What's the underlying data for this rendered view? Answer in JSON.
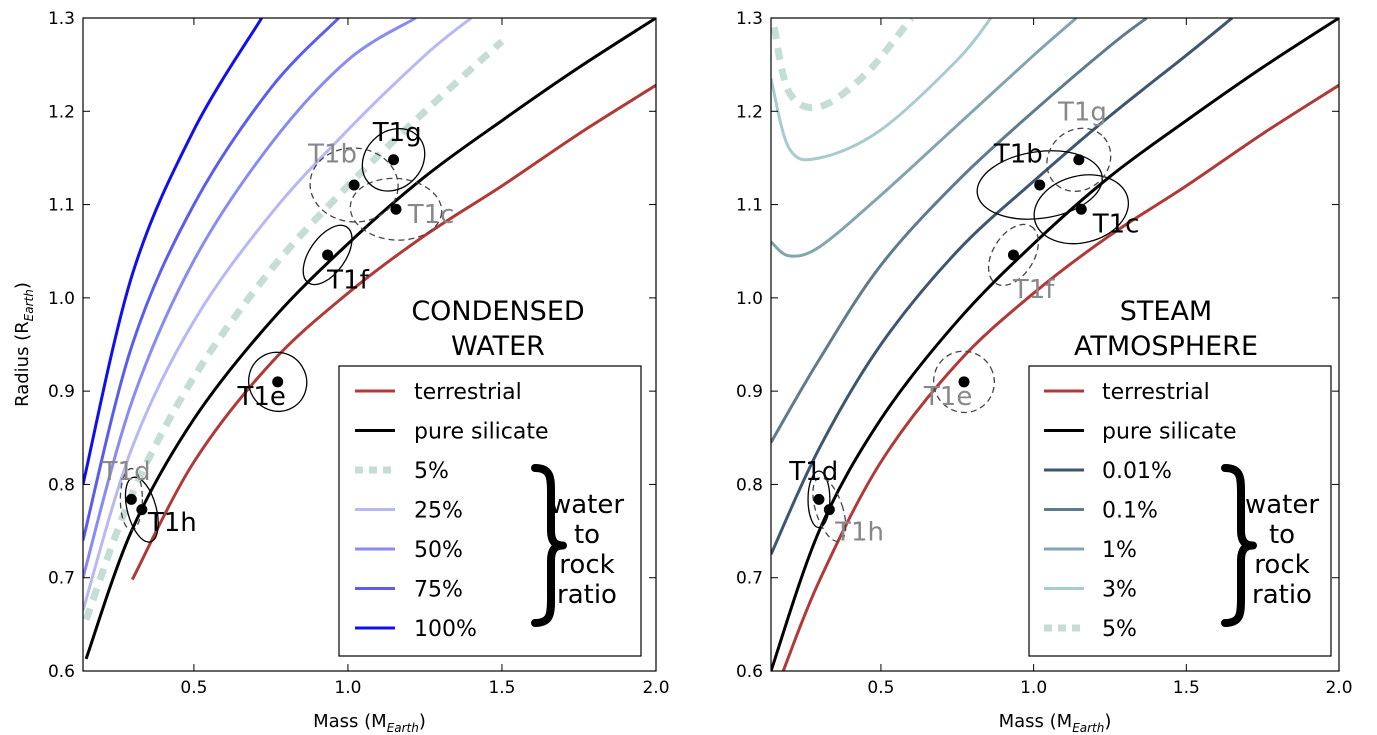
{
  "chart_data": [
    {
      "type": "line",
      "xlabel": "Mass (M",
      "xlabel_sub": "Earth",
      "ylabel": "Radius (R",
      "ylabel_sub": "Earth",
      "xlim": [
        0.14,
        2.0
      ],
      "ylim": [
        0.6,
        1.3
      ],
      "xticks": [
        0.5,
        1.0,
        1.5,
        2.0
      ],
      "xticklabels": [
        "0.5",
        "1.0",
        "1.5",
        "2.0"
      ],
      "yticks": [
        0.6,
        0.7,
        0.8,
        0.9,
        1.0,
        1.1,
        1.2,
        1.3
      ],
      "yticklabels": [
        "0.6",
        "0.7",
        "0.8",
        "0.9",
        "1.0",
        "1.1",
        "1.2",
        "1.3"
      ],
      "panel_label": [
        "CONDENSED",
        "WATER"
      ],
      "legend_placement": "lower-right",
      "legend": [
        {
          "label": "terrestrial",
          "color": "#b03a38",
          "style": "solid"
        },
        {
          "label": "pure silicate",
          "color": "#000000",
          "style": "solid"
        },
        {
          "label": "5%",
          "color": "#c5ddd5",
          "style": "dashed"
        },
        {
          "label": "25%",
          "color": "#b8b8f4",
          "style": "solid"
        },
        {
          "label": "50%",
          "color": "#8a8af4",
          "style": "solid"
        },
        {
          "label": "75%",
          "color": "#5c5cf0",
          "style": "solid"
        },
        {
          "label": "100%",
          "color": "#1010ee",
          "style": "solid"
        }
      ],
      "brace_text": [
        "water",
        "to",
        "rock",
        "ratio"
      ],
      "series": [
        {
          "name": "terrestrial",
          "color": "#b03a38",
          "x": [
            0.3,
            0.5,
            0.75,
            1.0,
            1.25,
            1.5,
            1.75,
            2.0
          ],
          "y": [
            0.698,
            0.824,
            0.93,
            1.005,
            1.067,
            1.12,
            1.176,
            1.228
          ]
        },
        {
          "name": "pure silicate",
          "color": "#000000",
          "x": [
            0.15,
            0.3,
            0.5,
            0.75,
            1.0,
            1.25,
            1.5,
            1.75,
            2.0
          ],
          "y": [
            0.613,
            0.752,
            0.87,
            0.975,
            1.058,
            1.13,
            1.19,
            1.247,
            1.3
          ]
        },
        {
          "name": "5%",
          "color": "#c5ddd5",
          "x": [
            0.15,
            0.3,
            0.5,
            0.75,
            1.0,
            1.25,
            1.5
          ],
          "y": [
            0.655,
            0.79,
            0.915,
            1.03,
            1.12,
            1.2,
            1.275
          ]
        },
        {
          "name": "25%",
          "color": "#b8b8f4",
          "x": [
            0.14,
            0.3,
            0.5,
            0.75,
            1.0,
            1.25,
            1.4
          ],
          "y": [
            0.665,
            0.84,
            0.975,
            1.09,
            1.18,
            1.26,
            1.3
          ]
        },
        {
          "name": "50%",
          "color": "#8a8af4",
          "x": [
            0.14,
            0.3,
            0.5,
            0.75,
            1.0,
            1.22
          ],
          "y": [
            0.7,
            0.89,
            1.04,
            1.165,
            1.255,
            1.3
          ]
        },
        {
          "name": "75%",
          "color": "#5c5cf0",
          "x": [
            0.14,
            0.3,
            0.5,
            0.75,
            0.97
          ],
          "y": [
            0.74,
            0.95,
            1.1,
            1.225,
            1.3
          ]
        },
        {
          "name": "100%",
          "color": "#1010ee",
          "x": [
            0.14,
            0.3,
            0.5,
            0.72
          ],
          "y": [
            0.8,
            1.025,
            1.18,
            1.3
          ]
        }
      ],
      "points": [
        {
          "label": "T1b",
          "x": 1.02,
          "y": 1.121
        },
        {
          "label": "T1c",
          "x": 1.156,
          "y": 1.095
        },
        {
          "label": "T1d",
          "x": 0.297,
          "y": 0.784
        },
        {
          "label": "T1e",
          "x": 0.772,
          "y": 0.91
        },
        {
          "label": "T1f",
          "x": 0.934,
          "y": 1.046
        },
        {
          "label": "T1g",
          "x": 1.148,
          "y": 1.148
        },
        {
          "label": "T1h",
          "x": 0.331,
          "y": 0.773
        }
      ],
      "planet_labels": [
        {
          "text": "T1b",
          "color": "#888888",
          "x": 0.95,
          "y": 1.145
        },
        {
          "text": "T1c",
          "color": "#888888",
          "x": 1.27,
          "y": 1.08
        },
        {
          "text": "T1d",
          "color": "#888888",
          "x": 0.28,
          "y": 0.805
        },
        {
          "text": "T1e",
          "color": "#000000",
          "x": 0.72,
          "y": 0.885
        },
        {
          "text": "T1f",
          "color": "#000000",
          "x": 1.0,
          "y": 1.01
        },
        {
          "text": "T1g",
          "color": "#000000",
          "x": 1.16,
          "y": 1.168
        },
        {
          "text": "T1h",
          "color": "#000000",
          "x": 0.43,
          "y": 0.75
        }
      ]
    },
    {
      "type": "line",
      "xlabel": "Mass (M",
      "xlabel_sub": "Earth",
      "xlim": [
        0.14,
        2.0
      ],
      "ylim": [
        0.6,
        1.3
      ],
      "xticks": [
        0.5,
        1.0,
        1.5,
        2.0
      ],
      "xticklabels": [
        "0.5",
        "1.0",
        "1.5",
        "2.0"
      ],
      "yticks": [
        0.6,
        0.7,
        0.8,
        0.9,
        1.0,
        1.1,
        1.2,
        1.3
      ],
      "yticklabels": [
        "0.6",
        "0.7",
        "0.8",
        "0.9",
        "1.0",
        "1.1",
        "1.2",
        "1.3"
      ],
      "panel_label": [
        "STEAM",
        "ATMOSPHERE"
      ],
      "legend_placement": "lower-right",
      "legend": [
        {
          "label": "terrestrial",
          "color": "#b03a38",
          "style": "solid"
        },
        {
          "label": "pure silicate",
          "color": "#000000",
          "style": "solid"
        },
        {
          "label": "0.01%",
          "color": "#3f5670",
          "style": "solid"
        },
        {
          "label": "0.1%",
          "color": "#5f7c8e",
          "style": "solid"
        },
        {
          "label": "1%",
          "color": "#82a5b0",
          "style": "solid"
        },
        {
          "label": "3%",
          "color": "#a8cbcb",
          "style": "solid"
        },
        {
          "label": "5%",
          "color": "#c5ddd5",
          "style": "dashed"
        }
      ],
      "brace_text": [
        "water",
        "to",
        "rock",
        "ratio"
      ],
      "series": [
        {
          "name": "terrestrial",
          "color": "#b03a38",
          "x": [
            0.18,
            0.3,
            0.5,
            0.75,
            1.0,
            1.25,
            1.5,
            1.75,
            2.0
          ],
          "y": [
            0.6,
            0.698,
            0.824,
            0.93,
            1.005,
            1.067,
            1.12,
            1.176,
            1.228
          ]
        },
        {
          "name": "pure silicate",
          "color": "#000000",
          "x": [
            0.14,
            0.3,
            0.5,
            0.75,
            1.0,
            1.25,
            1.5,
            1.75,
            2.0
          ],
          "y": [
            0.6,
            0.752,
            0.87,
            0.975,
            1.058,
            1.13,
            1.19,
            1.247,
            1.3
          ]
        },
        {
          "name": "0.01%",
          "color": "#3f5670",
          "x": [
            0.14,
            0.3,
            0.5,
            0.75,
            1.0,
            1.25,
            1.5,
            1.65
          ],
          "y": [
            0.725,
            0.84,
            0.95,
            1.05,
            1.125,
            1.195,
            1.26,
            1.3
          ]
        },
        {
          "name": "0.1%",
          "color": "#5f7c8e",
          "x": [
            0.14,
            0.3,
            0.5,
            0.75,
            1.0,
            1.25,
            1.37
          ],
          "y": [
            0.845,
            0.935,
            1.035,
            1.125,
            1.2,
            1.27,
            1.3
          ]
        },
        {
          "name": "1%",
          "color": "#82a5b0",
          "x": [
            0.14,
            0.2,
            0.3,
            0.5,
            0.75,
            1.0,
            1.14
          ],
          "y": [
            1.06,
            1.045,
            1.055,
            1.11,
            1.185,
            1.26,
            1.3
          ]
        },
        {
          "name": "3%",
          "color": "#a8cbcb",
          "x": [
            0.14,
            0.2,
            0.3,
            0.5,
            0.75,
            0.86
          ],
          "y": [
            1.235,
            1.16,
            1.15,
            1.18,
            1.255,
            1.3
          ]
        },
        {
          "name": "5%",
          "color": "#c5ddd5",
          "x": [
            0.15,
            0.2,
            0.3,
            0.45,
            0.6
          ],
          "y": [
            1.29,
            1.22,
            1.205,
            1.24,
            1.3
          ]
        }
      ],
      "points": [
        {
          "label": "T1b",
          "x": 1.02,
          "y": 1.121
        },
        {
          "label": "T1c",
          "x": 1.156,
          "y": 1.095
        },
        {
          "label": "T1d",
          "x": 0.297,
          "y": 0.784
        },
        {
          "label": "T1e",
          "x": 0.772,
          "y": 0.91
        },
        {
          "label": "T1f",
          "x": 0.934,
          "y": 1.046
        },
        {
          "label": "T1g",
          "x": 1.148,
          "y": 1.148
        },
        {
          "label": "T1h",
          "x": 0.331,
          "y": 0.773
        }
      ],
      "planet_labels": [
        {
          "text": "T1b",
          "color": "#000000",
          "x": 0.95,
          "y": 1.145
        },
        {
          "text": "T1c",
          "color": "#000000",
          "x": 1.27,
          "y": 1.07
        },
        {
          "text": "T1d",
          "color": "#000000",
          "x": 0.28,
          "y": 0.805
        },
        {
          "text": "T1e",
          "color": "#888888",
          "x": 0.72,
          "y": 0.885
        },
        {
          "text": "T1f",
          "color": "#888888",
          "x": 1.0,
          "y": 1.0
        },
        {
          "text": "T1g",
          "color": "#888888",
          "x": 1.16,
          "y": 1.19
        },
        {
          "text": "T1h",
          "color": "#888888",
          "x": 0.43,
          "y": 0.74
        }
      ]
    }
  ]
}
